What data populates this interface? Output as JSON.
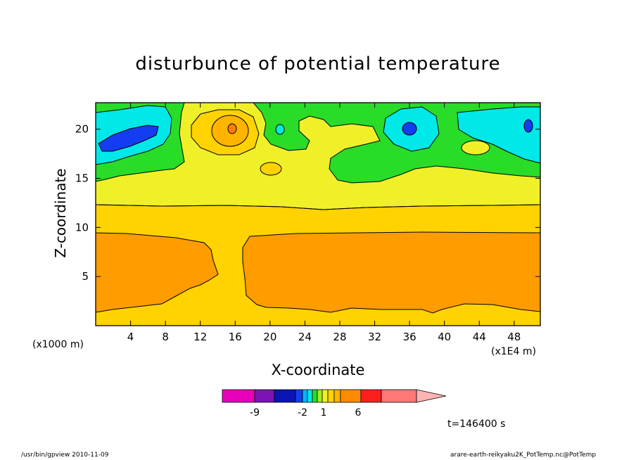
{
  "title": "disturbunce of potential temperature",
  "chart_data": {
    "type": "heatmap",
    "title": "disturbunce of potential temperature",
    "xlabel": "X-coordinate",
    "ylabel": "Z-coordinate",
    "x_unit_note": "(x1E4 m)",
    "y_unit_note": "(x1000 m)",
    "x_ticks": [
      4,
      8,
      12,
      16,
      20,
      24,
      28,
      32,
      36,
      40,
      44,
      48
    ],
    "y_ticks": [
      5,
      10,
      15,
      20
    ],
    "xlim": [
      0,
      51
    ],
    "ylim": [
      0,
      22.7
    ],
    "grid": false,
    "colorbar_labels": [
      "-9",
      "-2",
      "1",
      "6"
    ],
    "colorbar_colors": [
      "#e800b8",
      "#7a14b4",
      "#0a14b4",
      "#143cf0",
      "#00b4ff",
      "#00e8e8",
      "#28dc28",
      "#a0f028",
      "#f0f028",
      "#ffd200",
      "#ffb400",
      "#ff8c00",
      "#ff1e1e",
      "#ff7878",
      "#ffb4b4"
    ],
    "time_label": "t=146400 s"
  },
  "footer": {
    "left": "/usr/bin/gpview   2010-11-09",
    "right": "arare-earth-reikyaku2K_PotTemp.nc@PotTemp"
  },
  "colors": {
    "green": "#28dc28",
    "cyan": "#00e8e8",
    "blue": "#143cf0",
    "yellow": "#f0f028",
    "gold": "#ffd200",
    "orange": "#ff9c00",
    "red_orange": "#ff7e00"
  }
}
